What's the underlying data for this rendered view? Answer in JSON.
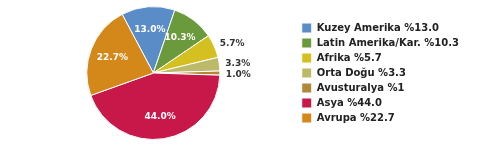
{
  "chart_data": {
    "type": "pie",
    "categories": [
      "Kuzey Amerika %13.0",
      "Latin Amerika/Kar. %10.3",
      "Afrika %5.7",
      "Orta Doğu %3.3",
      "Avusturalya %1",
      "Asya %44.0",
      "Avrupa %22.7"
    ],
    "values": [
      13.0,
      10.3,
      5.7,
      3.3,
      1.0,
      44.0,
      22.7
    ],
    "value_labels": [
      "13.0%",
      "10.3%",
      "5.7%",
      "3.3%",
      "1.0%",
      "44.0%",
      "22.7%"
    ],
    "colors": [
      "#5A8DC8",
      "#6A9A3C",
      "#D4C020",
      "#BCBA6A",
      "#B08838",
      "#C8184A",
      "#D4881A"
    ],
    "data_labels": true,
    "legend": "right"
  }
}
